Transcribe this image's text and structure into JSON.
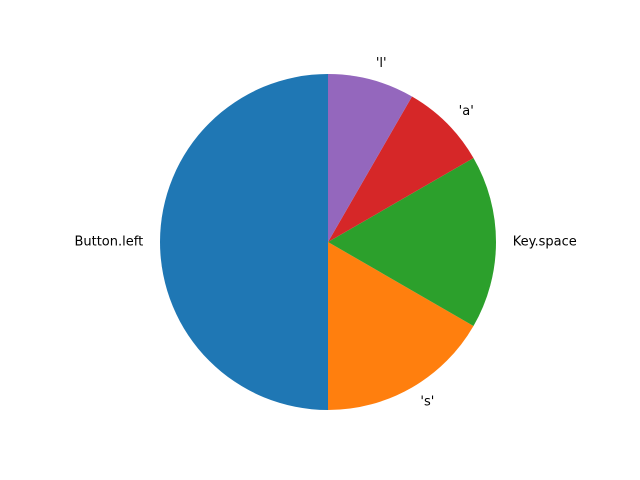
{
  "chart_data": {
    "type": "pie",
    "labels": [
      "Button.left",
      "'s'",
      "Key.space",
      "'a'",
      "'l'"
    ],
    "values": [
      6,
      2,
      2,
      1,
      1
    ],
    "colors": [
      "#1f77b4",
      "#ff7f0e",
      "#2ca02c",
      "#d62728",
      "#9467bd"
    ],
    "start_angle_deg": 90,
    "direction": "counterclockwise",
    "title": "",
    "legend": false
  }
}
